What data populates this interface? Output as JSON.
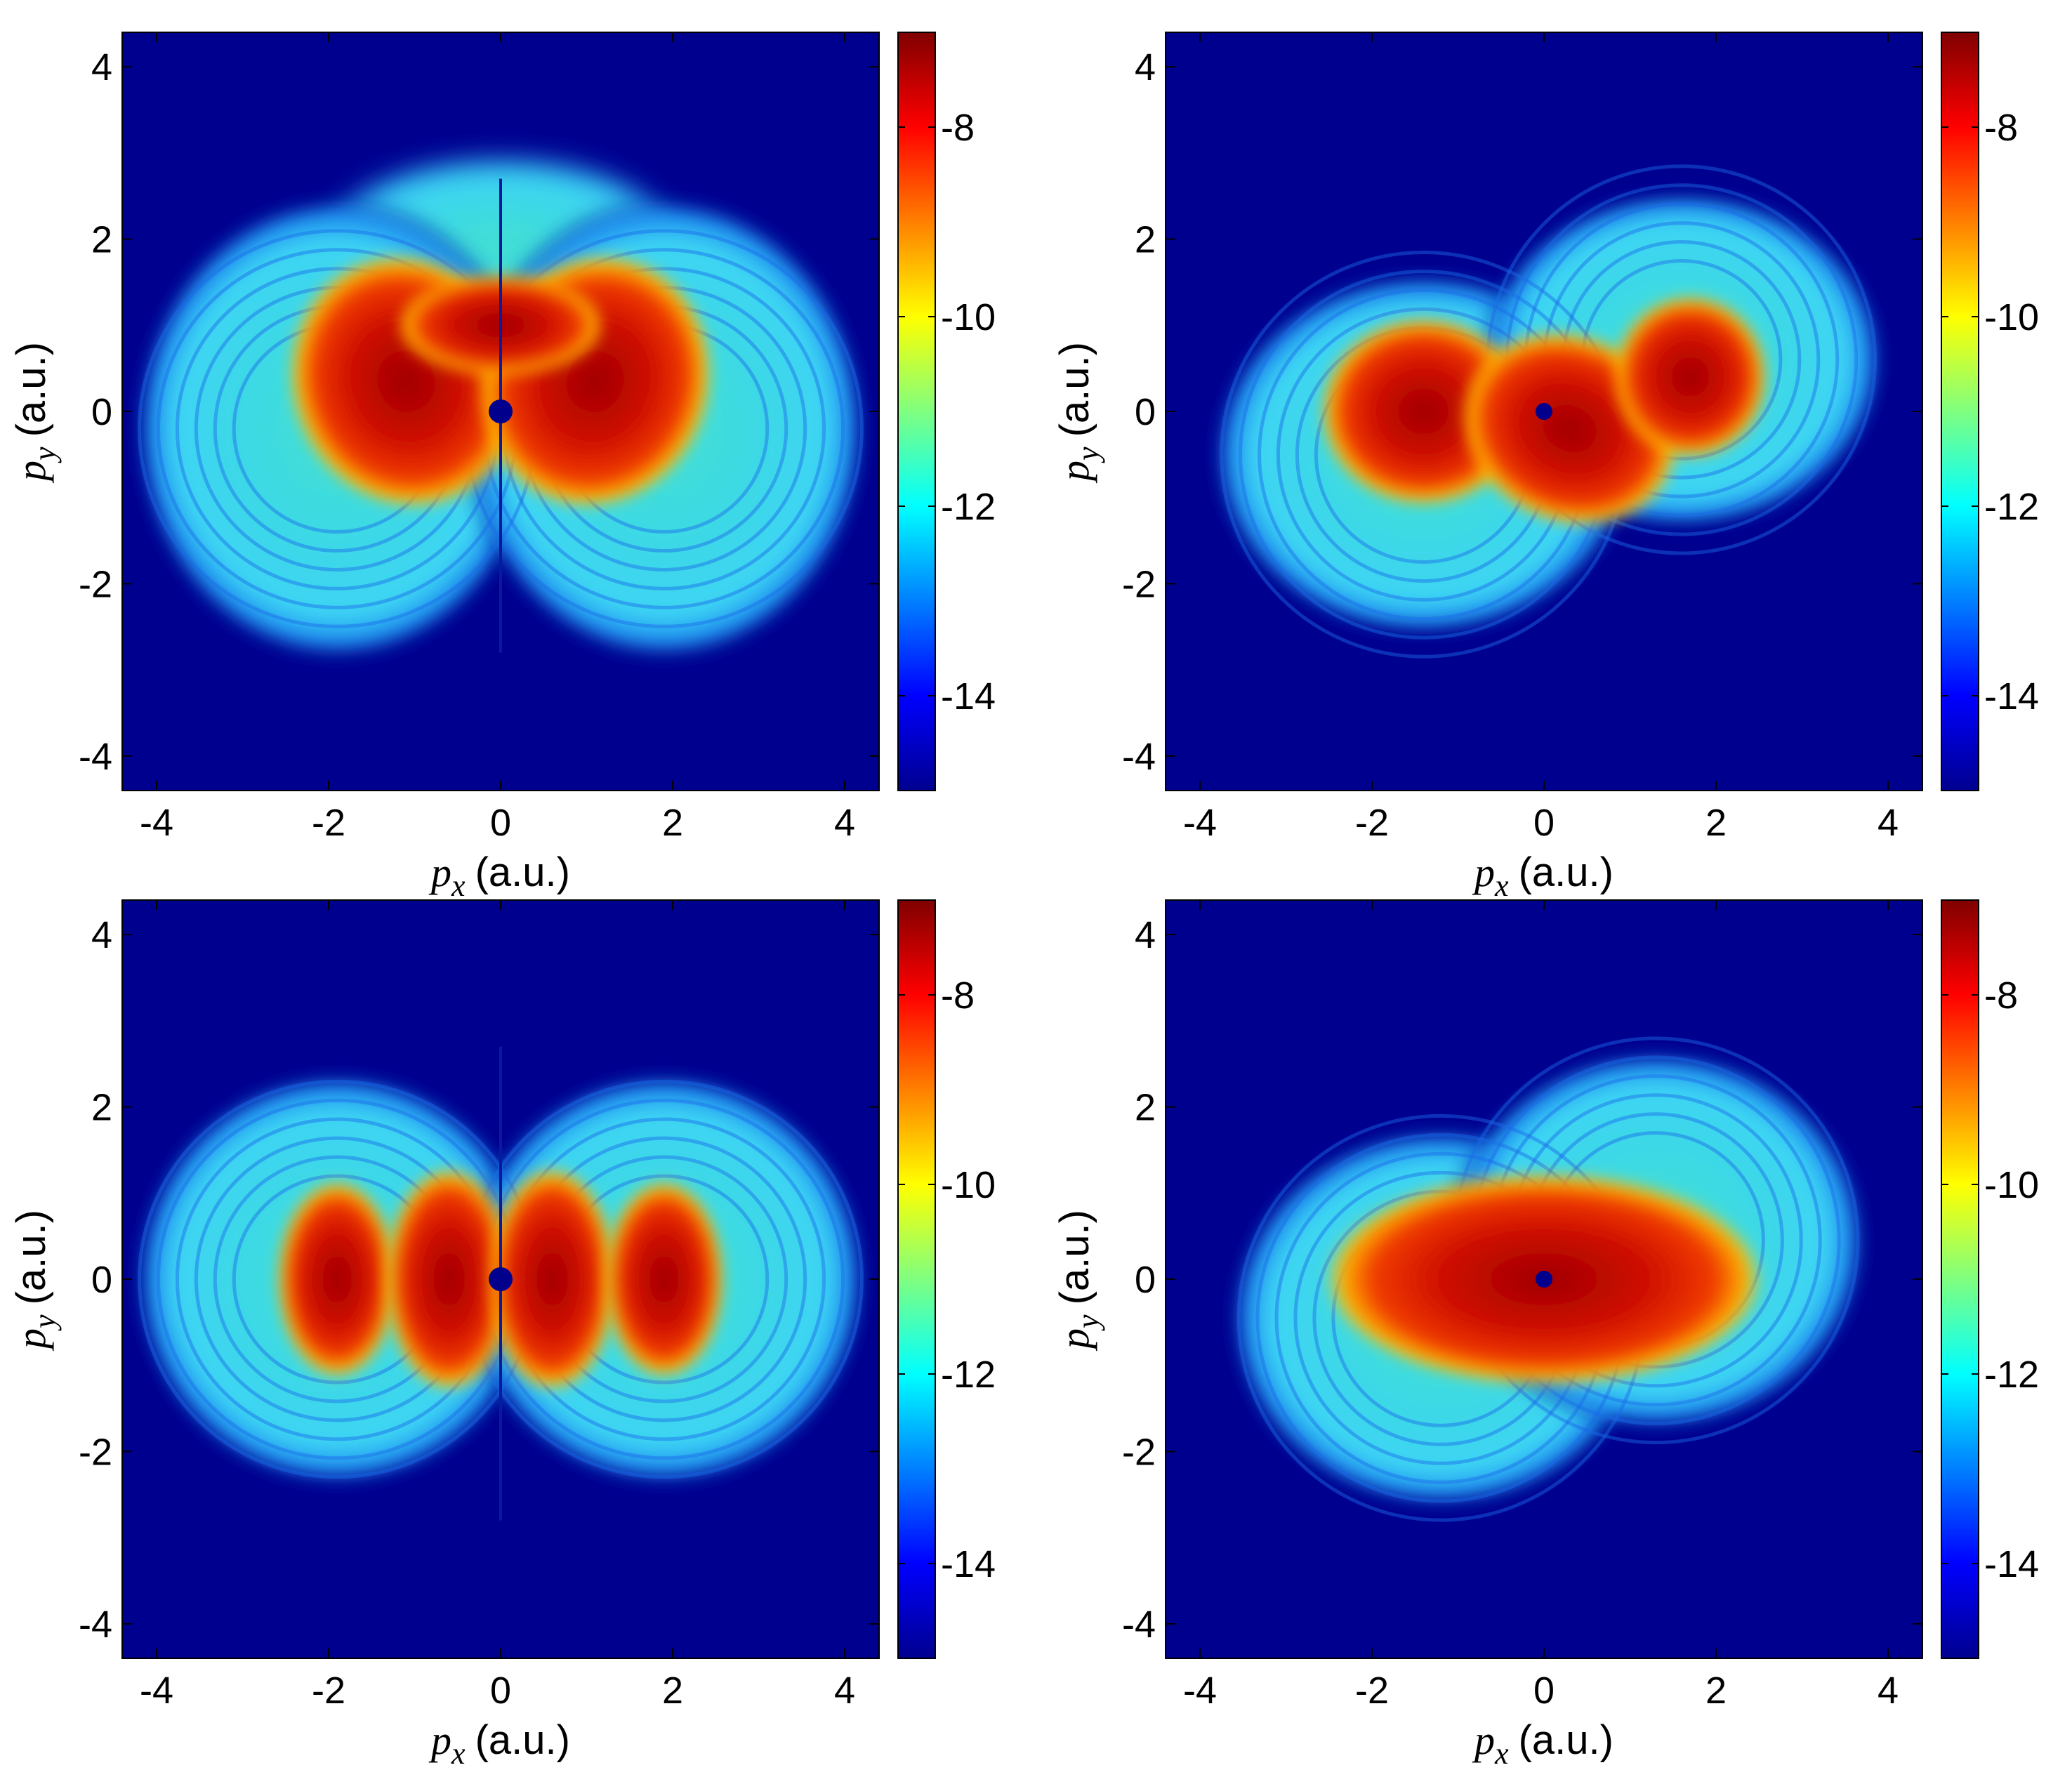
{
  "chart_data": [
    {
      "type": "heatmap",
      "pattern": "asymmetric-two-lobe-up",
      "title": "",
      "xlabel": {
        "var": "p",
        "sub": "x",
        "unit": "(a.u.)"
      },
      "ylabel": {
        "var": "p",
        "sub": "y",
        "unit": "(a.u.)"
      },
      "xlim": [
        -4.4,
        4.4
      ],
      "ylim": [
        -4.4,
        4.4
      ],
      "xticks": [
        -4,
        -2,
        0,
        2,
        4
      ],
      "yticks": [
        -4,
        -2,
        0,
        2,
        4
      ],
      "colorbar": {
        "colormap": "jet",
        "range": [
          -15,
          -7
        ],
        "ticks": [
          -8,
          -10,
          -12,
          -14
        ]
      },
      "center_marker": {
        "x": 0,
        "y": 0,
        "color": "#00008c"
      }
    },
    {
      "type": "heatmap",
      "pattern": "tilted-double-ring",
      "title": "",
      "xlabel": {
        "var": "p",
        "sub": "x",
        "unit": "(a.u.)"
      },
      "ylabel": {
        "var": "p",
        "sub": "y",
        "unit": "(a.u.)"
      },
      "xlim": [
        -4.4,
        4.4
      ],
      "ylim": [
        -4.4,
        4.4
      ],
      "xticks": [
        -4,
        -2,
        0,
        2,
        4
      ],
      "yticks": [
        -4,
        -2,
        0,
        2,
        4
      ],
      "colorbar": {
        "colormap": "jet",
        "range": [
          -15,
          -7
        ],
        "ticks": [
          -8,
          -10,
          -12,
          -14
        ]
      },
      "center_marker": {
        "x": 0,
        "y": 0,
        "color": "#00008c"
      }
    },
    {
      "type": "heatmap",
      "pattern": "symmetric-four-lobe",
      "title": "",
      "xlabel": {
        "var": "p",
        "sub": "x",
        "unit": "(a.u.)"
      },
      "ylabel": {
        "var": "p",
        "sub": "y",
        "unit": "(a.u.)"
      },
      "xlim": [
        -4.4,
        4.4
      ],
      "ylim": [
        -4.4,
        4.4
      ],
      "xticks": [
        -4,
        -2,
        0,
        2,
        4
      ],
      "yticks": [
        -4,
        -2,
        0,
        2,
        4
      ],
      "colorbar": {
        "colormap": "jet",
        "range": [
          -15,
          -7
        ],
        "ticks": [
          -8,
          -10,
          -12,
          -14
        ]
      },
      "center_marker": {
        "x": 0,
        "y": 0,
        "color": "#00008c"
      }
    },
    {
      "type": "heatmap",
      "pattern": "tilted-double-ring-wide",
      "title": "",
      "xlabel": {
        "var": "p",
        "sub": "x",
        "unit": "(a.u.)"
      },
      "ylabel": {
        "var": "p",
        "sub": "y",
        "unit": "(a.u.)"
      },
      "xlim": [
        -4.4,
        4.4
      ],
      "ylim": [
        -4.4,
        4.4
      ],
      "xticks": [
        -4,
        -2,
        0,
        2,
        4
      ],
      "yticks": [
        -4,
        -2,
        0,
        2,
        4
      ],
      "colorbar": {
        "colormap": "jet",
        "range": [
          -15,
          -7
        ],
        "ticks": [
          -8,
          -10,
          -12,
          -14
        ]
      },
      "center_marker": {
        "x": 0,
        "y": 0,
        "color": "#00008c"
      }
    }
  ],
  "colors": {
    "background": "#00008f",
    "ring": "#33cdfa",
    "core": "#e01800",
    "peak": "#8a0000",
    "marker": "#00008c"
  }
}
